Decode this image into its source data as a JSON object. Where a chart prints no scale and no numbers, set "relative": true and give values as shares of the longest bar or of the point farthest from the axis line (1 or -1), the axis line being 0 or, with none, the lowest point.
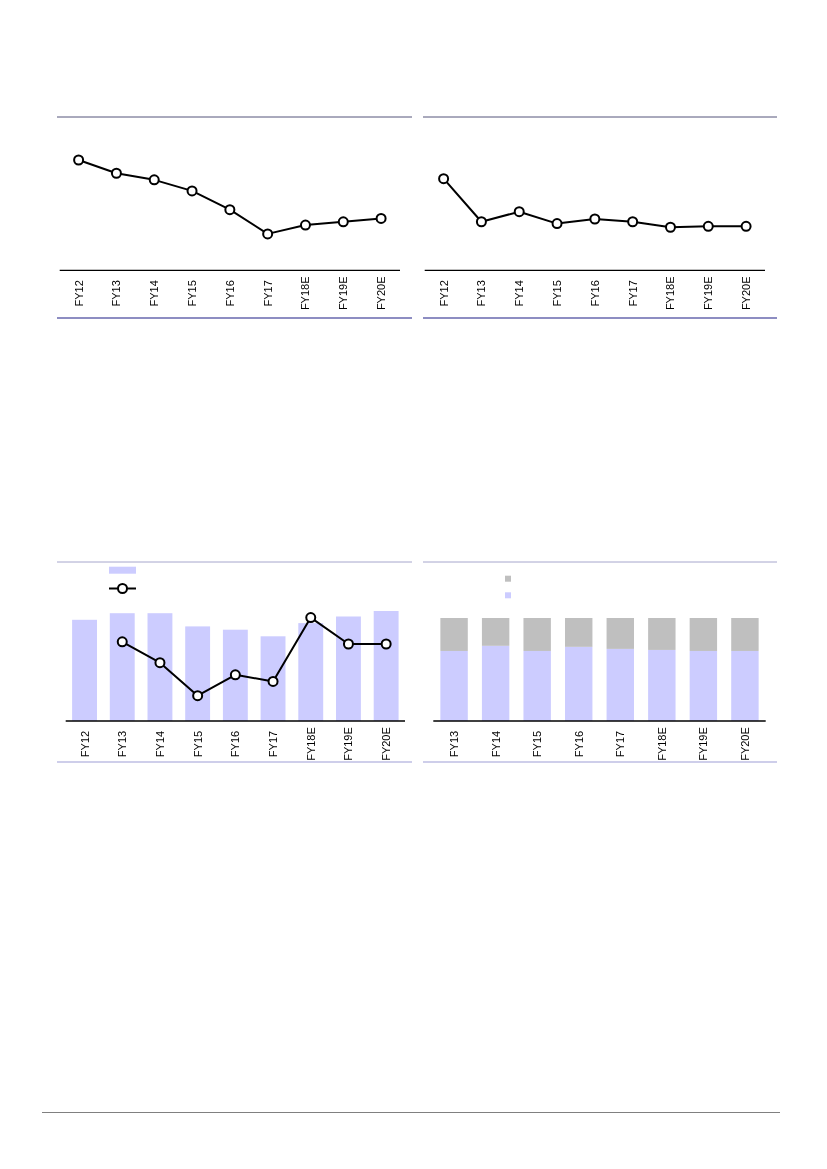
{
  "chart_data": [
    {
      "type": "line",
      "relative": true,
      "marker": "circle",
      "categories": [
        "FY12",
        "FY13",
        "FY14",
        "FY15",
        "FY16",
        "FY17",
        "FY18E",
        "FY19E",
        "FY20E"
      ],
      "series": [
        {
          "color": "#000000",
          "values": [
            1,
            0.88,
            0.82,
            0.72,
            0.55,
            0.33,
            0.41,
            0.44,
            0.47
          ]
        }
      ]
    },
    {
      "type": "line",
      "relative": true,
      "marker": "circle",
      "categories": [
        "FY12",
        "FY13",
        "FY14",
        "FY15",
        "FY16",
        "FY17",
        "FY18E",
        "FY19E",
        "FY20E"
      ],
      "series": [
        {
          "color": "#000000",
          "values": [
            1,
            0.53,
            0.64,
            0.51,
            0.56,
            0.53,
            0.47,
            0.48,
            0.48
          ]
        }
      ]
    },
    {
      "type": "bar",
      "relative": true,
      "marker": "circle",
      "categories": [
        "FY12",
        "FY13",
        "FY14",
        "FY15",
        "FY16",
        "FY17",
        "FY18E",
        "FY19E",
        "FY20E"
      ],
      "series": [
        {
          "type": "bar",
          "color": "#ccccff",
          "values": [
            0.92,
            0.98,
            0.98,
            0.86,
            0.83,
            0.77,
            0.89,
            0.95,
            1
          ]
        },
        {
          "type": "line",
          "color": "#000000",
          "values": [
            null,
            0.72,
            0.53,
            0.23,
            0.42,
            0.36,
            0.94,
            0.7,
            0.7
          ]
        }
      ]
    },
    {
      "type": "bar",
      "stacked": true,
      "relative": true,
      "categories": [
        "FY13",
        "FY14",
        "FY15",
        "FY16",
        "FY17",
        "FY18E",
        "FY19E",
        "FY20E"
      ],
      "series": [
        {
          "color": "#ccccff",
          "values": [
            0.68,
            0.73,
            0.68,
            0.72,
            0.7,
            0.69,
            0.68,
            0.68
          ]
        },
        {
          "color": "#bfbfbf",
          "values": [
            0.32,
            0.27,
            0.32,
            0.28,
            0.3,
            0.31,
            0.32,
            0.32
          ]
        }
      ]
    }
  ]
}
